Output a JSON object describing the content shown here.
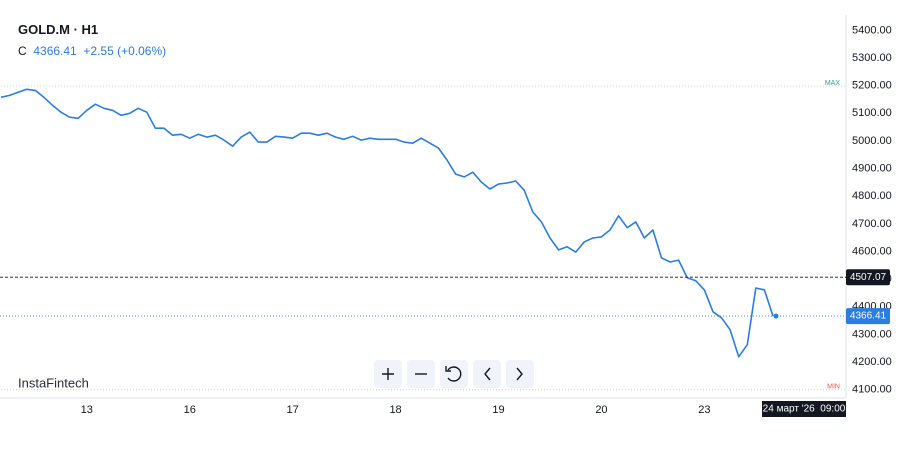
{
  "chart_data": {
    "type": "line",
    "legend_header": {
      "symbol": "GOLD.M · H1",
      "ohlc_label": "C",
      "close": 4366.41,
      "change": "+2.55 (+0.06%)"
    },
    "watermark": "InstaFintech",
    "crosshair_time": "24 март '26  09:00",
    "categories": [
      null,
      null,
      null,
      null,
      null,
      null,
      null,
      null,
      null,
      null,
      "13",
      null,
      null,
      null,
      null,
      null,
      null,
      null,
      null,
      null,
      null,
      null,
      "16",
      null,
      null,
      null,
      null,
      null,
      null,
      null,
      null,
      null,
      null,
      null,
      "17",
      null,
      null,
      null,
      null,
      null,
      null,
      null,
      null,
      null,
      null,
      null,
      "18",
      null,
      null,
      null,
      null,
      null,
      null,
      null,
      null,
      null,
      null,
      null,
      "19",
      null,
      null,
      null,
      null,
      null,
      null,
      null,
      null,
      null,
      null,
      null,
      "20",
      null,
      null,
      null,
      null,
      null,
      null,
      null,
      null,
      null,
      null,
      null,
      "23",
      null,
      null,
      null,
      null,
      null,
      null,
      null,
      null
    ],
    "series": [
      {
        "name": "GOLD.M",
        "color": "#2a7de1",
        "values": [
          5158,
          5165,
          5176,
          5187,
          5183,
          5158,
          5129,
          5104,
          5086,
          5082,
          5111,
          5133,
          5118,
          5111,
          5093,
          5100,
          5118,
          5104,
          5046,
          5046,
          5021,
          5024,
          5010,
          5024,
          5014,
          5021,
          5003,
          4981,
          5014,
          5032,
          4996,
          4996,
          5017,
          5014,
          5010,
          5028,
          5028,
          5021,
          5028,
          5014,
          5006,
          5017,
          5003,
          5010,
          5006,
          5006,
          5006,
          4996,
          4992,
          5010,
          4992,
          4974,
          4931,
          4880,
          4870,
          4887,
          4851,
          4826,
          4844,
          4848,
          4855,
          4822,
          4743,
          4707,
          4649,
          4606,
          4617,
          4598,
          4635,
          4649,
          4653,
          4678,
          4729,
          4686,
          4707,
          4649,
          4678,
          4577,
          4562,
          4569,
          4505,
          4494,
          4461,
          4382,
          4360,
          4317,
          4219,
          4263,
          4468,
          4461,
          4366.41
        ]
      }
    ],
    "ylim": [
      4070,
      5510
    ],
    "yticks": [
      {
        "value": 4100,
        "label": "4100.00"
      },
      {
        "value": 4200,
        "label": "4200.00"
      },
      {
        "value": 4300,
        "label": "4300.00"
      },
      {
        "value": 4400,
        "label": "4400.00"
      },
      {
        "value": 4500,
        "label": "4500.00"
      },
      {
        "value": 4600,
        "label": "4600.00"
      },
      {
        "value": 4700,
        "label": "4700.00"
      },
      {
        "value": 4800,
        "label": "4800.00"
      },
      {
        "value": 4900,
        "label": "4900.00"
      },
      {
        "value": 5000,
        "label": "5000.00"
      },
      {
        "value": 5100,
        "label": "5100.00"
      },
      {
        "value": 5200,
        "label": "5200.00"
      },
      {
        "value": 5300,
        "label": "5300.00"
      },
      {
        "value": 5400,
        "label": "5400.00"
      }
    ],
    "grid": false,
    "range_lines": [
      {
        "label": "MAX",
        "value": 5199,
        "color": "#26a69a"
      },
      {
        "label": "MIN",
        "value": 4100,
        "color": "#ef5350"
      }
    ],
    "price_lines": [
      {
        "value": 4507.07,
        "color": "#131722",
        "style": "dashed"
      },
      {
        "value": 4366.41,
        "color": "#2a7de1",
        "style": "dotted"
      }
    ]
  }
}
